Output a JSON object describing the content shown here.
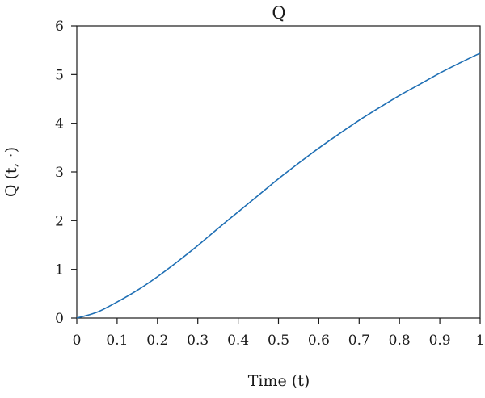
{
  "chart_data": {
    "type": "line",
    "title": "Q",
    "xlabel": "Time (t)",
    "ylabel": "Q (t, ·)",
    "xlim": [
      0,
      1
    ],
    "ylim": [
      0,
      6
    ],
    "xticks": [
      0,
      0.1,
      0.2,
      0.3,
      0.4,
      0.5,
      0.6,
      0.7,
      0.8,
      0.9,
      1
    ],
    "xtick_labels": [
      "0",
      "0.1",
      "0.2",
      "0.3",
      "0.4",
      "0.5",
      "0.6",
      "0.7",
      "0.8",
      "0.9",
      "1"
    ],
    "yticks": [
      0,
      1,
      2,
      3,
      4,
      5,
      6
    ],
    "ytick_labels": [
      "0",
      "1",
      "2",
      "3",
      "4",
      "5",
      "6"
    ],
    "grid": false,
    "series": [
      {
        "color": "#1f6fb4",
        "x": [
          0,
          0.05,
          0.1,
          0.15,
          0.2,
          0.25,
          0.3,
          0.35,
          0.4,
          0.45,
          0.5,
          0.55,
          0.6,
          0.65,
          0.7,
          0.75,
          0.8,
          0.85,
          0.9,
          0.95,
          1
        ],
        "y": [
          0,
          0.12,
          0.33,
          0.57,
          0.85,
          1.16,
          1.49,
          1.84,
          2.18,
          2.52,
          2.86,
          3.18,
          3.49,
          3.78,
          4.06,
          4.32,
          4.57,
          4.8,
          5.03,
          5.24,
          5.44
        ]
      }
    ]
  }
}
